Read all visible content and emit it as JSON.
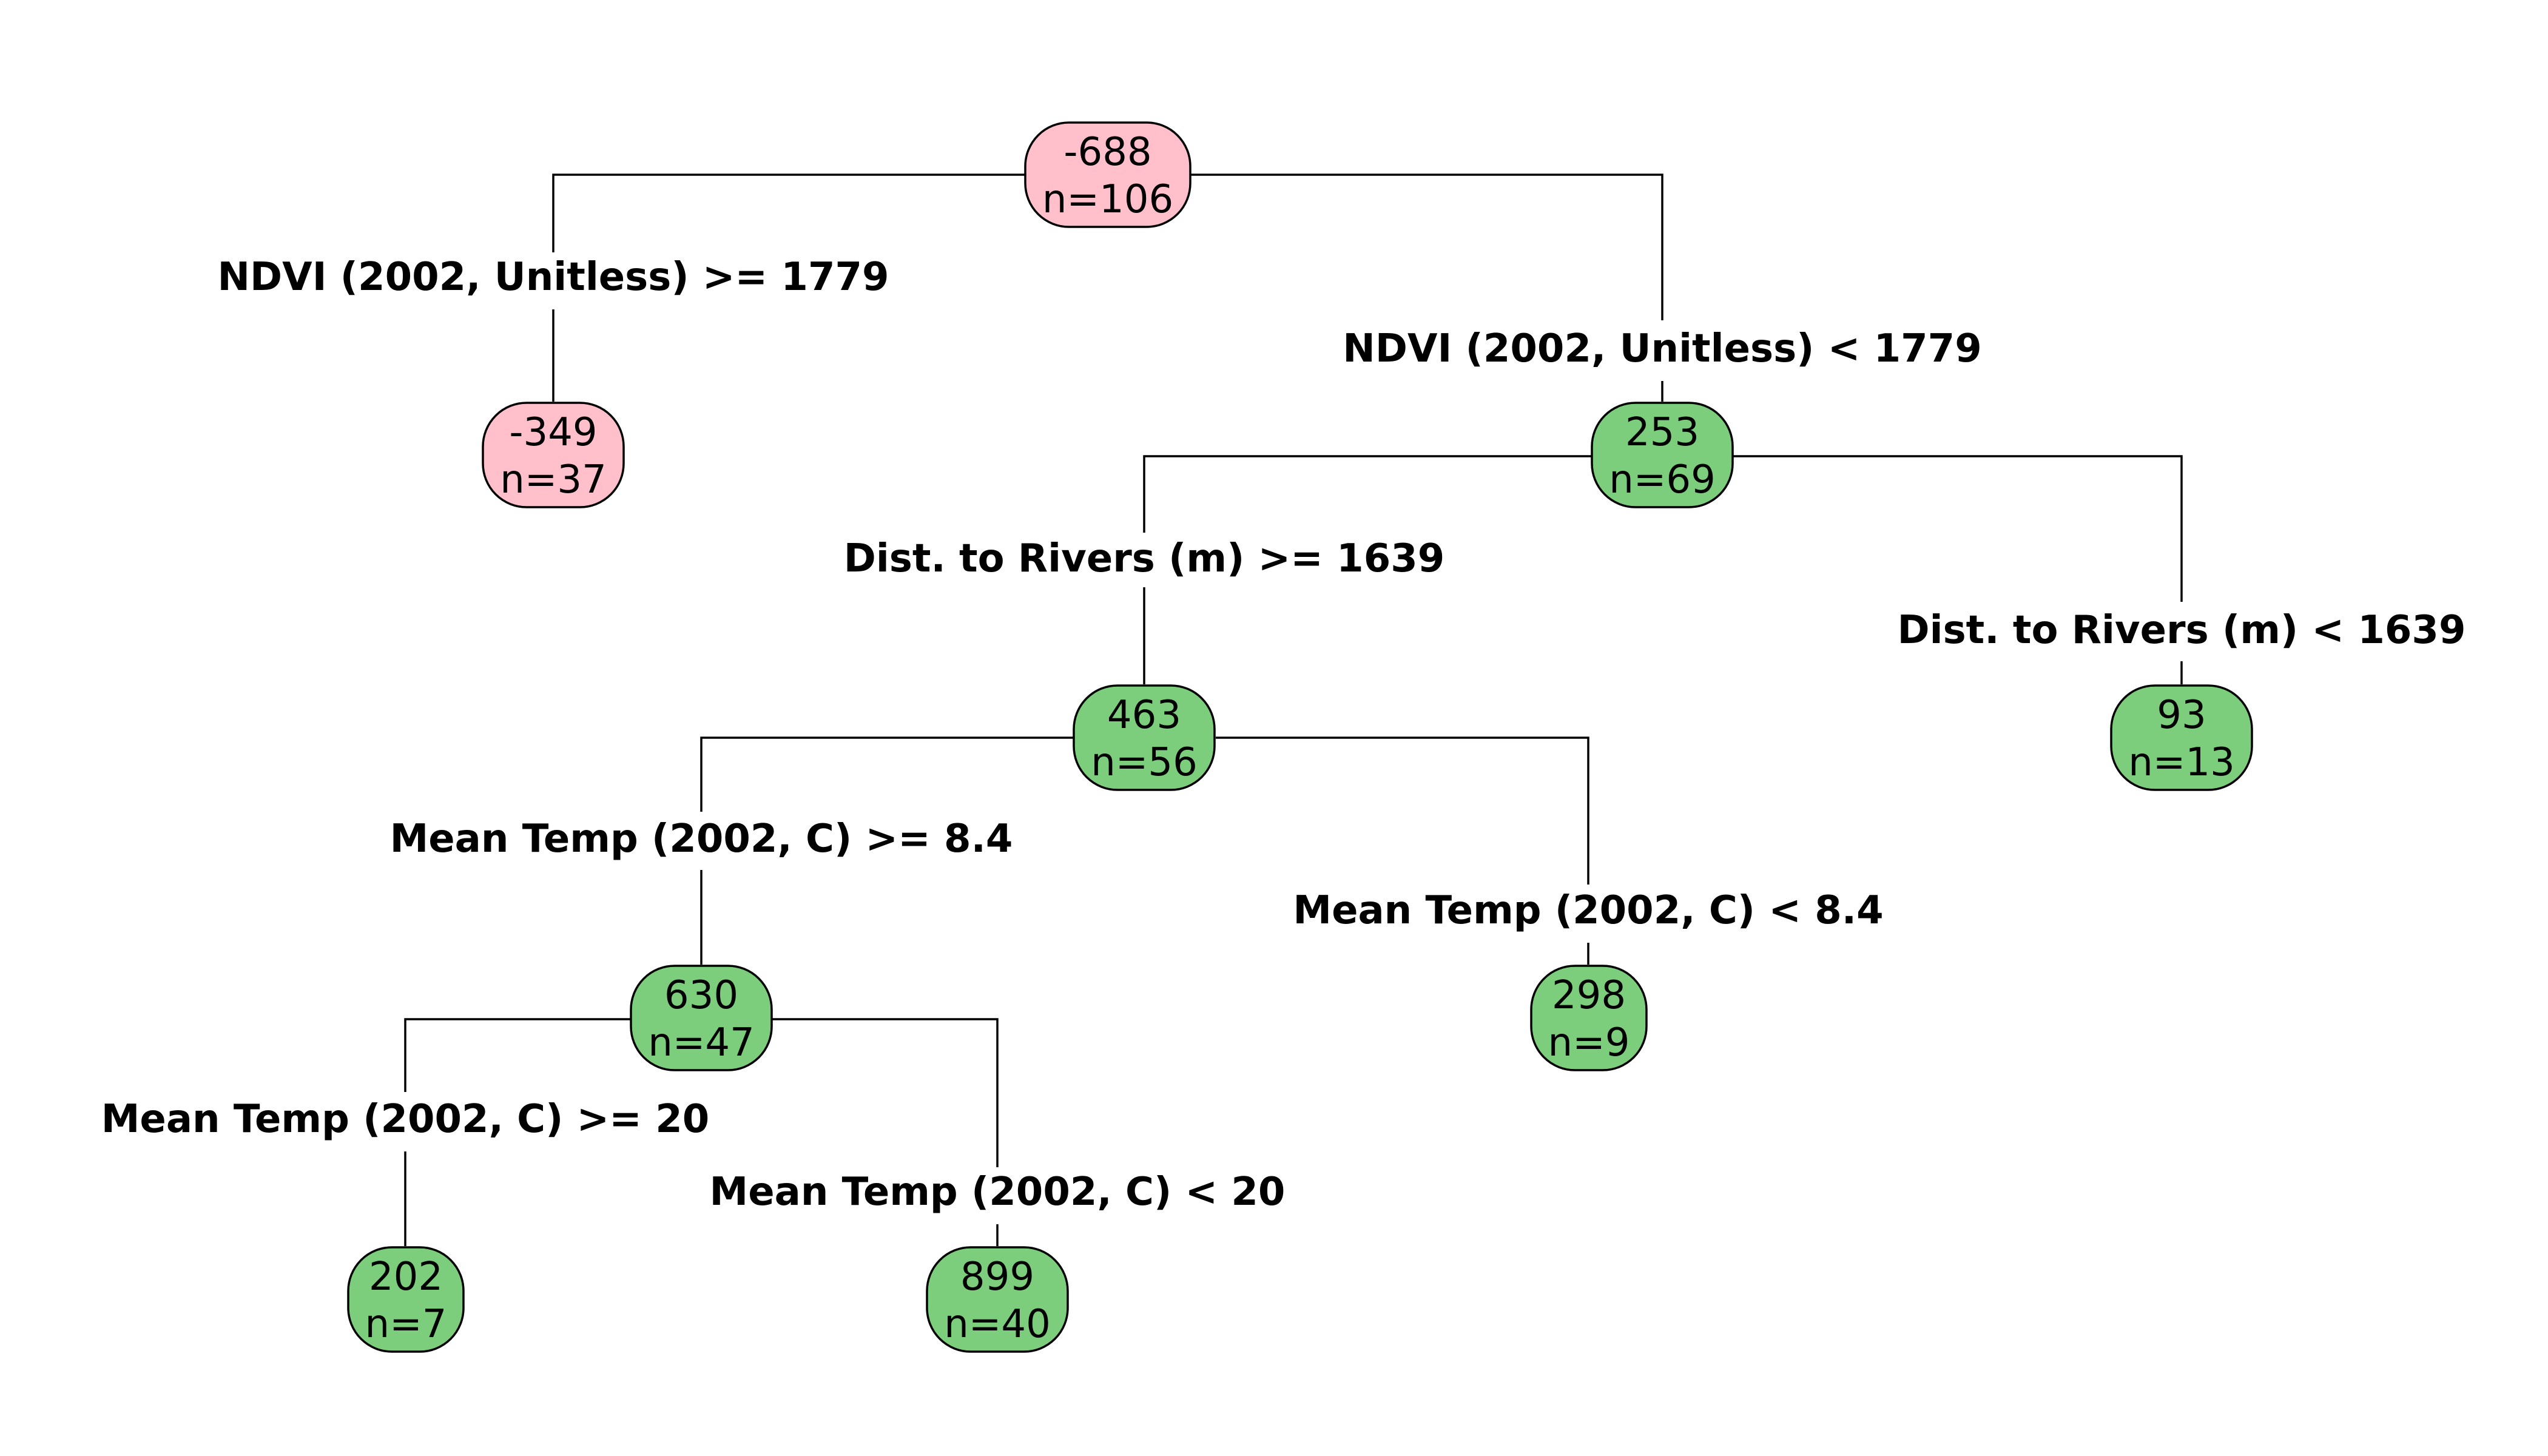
{
  "colors": {
    "negative": "#FFC0CB",
    "positive": "#7CCD7C",
    "line": "#000000"
  },
  "nodes": {
    "root": {
      "value": "-688",
      "n": "n=106",
      "color": "negative"
    },
    "n_left": {
      "value": "-349",
      "n": "n=37",
      "color": "negative"
    },
    "n_right": {
      "value": "253",
      "n": "n=69",
      "color": "positive"
    },
    "n_rl": {
      "value": "463",
      "n": "n=56",
      "color": "positive"
    },
    "n_rr": {
      "value": "93",
      "n": "n=13",
      "color": "positive"
    },
    "n_rll": {
      "value": "630",
      "n": "n=47",
      "color": "positive"
    },
    "n_rlr": {
      "value": "298",
      "n": "n=9",
      "color": "positive"
    },
    "n_rlll": {
      "value": "202",
      "n": "n=7",
      "color": "positive"
    },
    "n_rllr": {
      "value": "899",
      "n": "n=40",
      "color": "positive"
    }
  },
  "splits": {
    "root_left": "NDVI (2002, Unitless) >= 1779",
    "root_right": "NDVI (2002, Unitless) < 1779",
    "right_left": "Dist. to Rivers (m) >= 1639",
    "right_right": "Dist. to Rivers (m) < 1639",
    "rl_left": "Mean Temp (2002, C) >= 8.4",
    "rl_right": "Mean Temp (2002, C) < 8.4",
    "rll_left": "Mean Temp (2002, C) >= 20",
    "rll_right": "Mean Temp (2002, C) < 20"
  }
}
